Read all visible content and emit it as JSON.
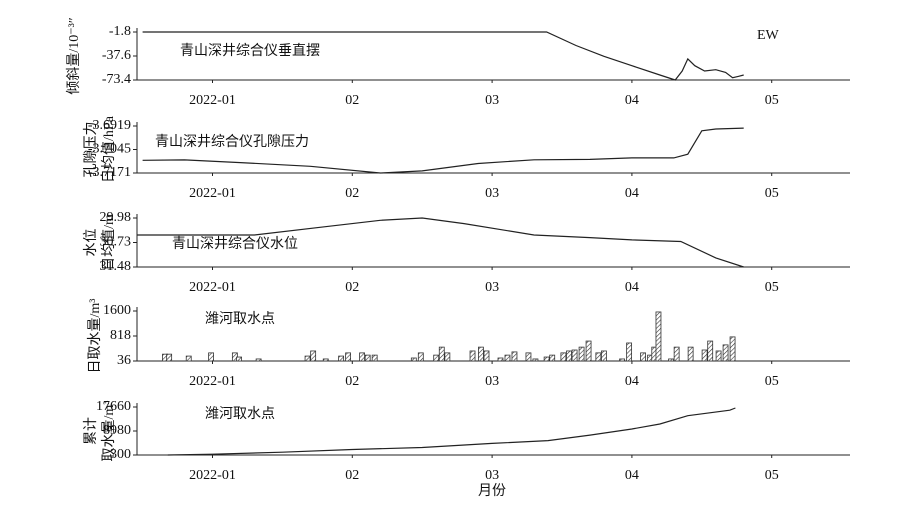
{
  "chart_data": [
    {
      "type": "line",
      "ylabel": [
        "倾斜量/10⁻³″"
      ],
      "annotations": [
        "青山深井综合仪垂直摆",
        "EW"
      ],
      "x": [
        0.5,
        1.0,
        2.0,
        3.0,
        3.39,
        3.6,
        3.8,
        4.0,
        4.2,
        4.31,
        4.36,
        4.4,
        4.45,
        4.52,
        4.6,
        4.67,
        4.72,
        4.76,
        4.8
      ],
      "values": [
        -1.8,
        -1.8,
        -1.8,
        -1.8,
        -1.8,
        -22,
        -38,
        -52,
        -66,
        -73.4,
        -60,
        -42,
        -52,
        -60,
        -58,
        -62,
        -70,
        -68,
        -66
      ],
      "color": "#222",
      "xlim": [
        0.46,
        5.56
      ],
      "xticks": [
        {
          "value": 1,
          "label": "2022-01"
        },
        {
          "value": 2,
          "label": "02"
        },
        {
          "value": 3,
          "label": "03"
        },
        {
          "value": 4,
          "label": "04"
        },
        {
          "value": 5,
          "label": "05"
        }
      ],
      "ylim": [
        -73.4,
        -1.8
      ],
      "yticks": [
        -1.8,
        -37.6,
        -73.4
      ]
    },
    {
      "type": "line",
      "ylabel": [
        "孔隙压力",
        "日均值/hPa"
      ],
      "annotations": [
        "青山深井综合仪孔隙压力"
      ],
      "x": [
        0.5,
        0.8,
        1.2,
        1.7,
        2.2,
        2.5,
        2.9,
        3.3,
        3.7,
        4.0,
        4.3,
        4.4,
        4.5,
        4.6,
        4.8
      ],
      "values": [
        -3.7103,
        -3.7101,
        -3.7115,
        -3.7135,
        -3.7171,
        -3.716,
        -3.712,
        -3.71,
        -3.7098,
        -3.709,
        -3.709,
        -3.707,
        -3.6945,
        -3.6935,
        -3.693
      ],
      "color": "#222",
      "xlim": [
        0.46,
        5.56
      ],
      "xticks": [
        {
          "value": 1,
          "label": "2022-01"
        },
        {
          "value": 2,
          "label": "02"
        },
        {
          "value": 3,
          "label": "03"
        },
        {
          "value": 4,
          "label": "04"
        },
        {
          "value": 5,
          "label": "05"
        }
      ],
      "ylim": [
        -3.7171,
        -3.6919
      ],
      "yticks": [
        -3.6919,
        -3.7045,
        -3.7171
      ]
    },
    {
      "type": "line",
      "ylabel": [
        "水位",
        "日均值/m"
      ],
      "annotations": [
        "青山深井综合仪水位"
      ],
      "x": [
        0.46,
        1.3,
        1.8,
        2.2,
        2.5,
        2.8,
        3.3,
        3.7,
        4.0,
        4.35,
        4.6,
        4.8
      ],
      "values": [
        30.5,
        30.5,
        30.25,
        30.05,
        29.98,
        30.15,
        30.5,
        30.58,
        30.65,
        30.7,
        31.2,
        31.48
      ],
      "color": "#222",
      "xlim": [
        0.46,
        5.56
      ],
      "xticks": [
        {
          "value": 1,
          "label": "2022-01"
        },
        {
          "value": 2,
          "label": "02"
        },
        {
          "value": 3,
          "label": "03"
        },
        {
          "value": 4,
          "label": "04"
        },
        {
          "value": 5,
          "label": "05"
        }
      ],
      "ylim": [
        31.48,
        29.98
      ],
      "yticks": [
        29.98,
        30.73,
        31.48
      ]
    },
    {
      "type": "bar",
      "ylabel": [
        "日取水量/m³"
      ],
      "annotations": [
        "潍河取水点"
      ],
      "x": [
        0.66,
        0.69,
        0.83,
        0.99,
        1.16,
        1.19,
        1.33,
        1.68,
        1.72,
        1.81,
        1.92,
        1.97,
        2.07,
        2.11,
        2.16,
        2.44,
        2.49,
        2.6,
        2.64,
        2.68,
        2.86,
        2.92,
        2.96,
        3.06,
        3.11,
        3.16,
        3.26,
        3.31,
        3.39,
        3.43,
        3.51,
        3.55,
        3.59,
        3.64,
        3.69,
        3.76,
        3.8,
        3.93,
        3.98,
        4.08,
        4.13,
        4.16,
        4.19,
        4.28,
        4.32,
        4.42,
        4.52,
        4.56,
        4.62,
        4.67,
        4.72
      ],
      "values": [
        250,
        250,
        190,
        290,
        290,
        160,
        100,
        190,
        350,
        100,
        190,
        290,
        290,
        220,
        220,
        130,
        290,
        220,
        470,
        290,
        350,
        470,
        350,
        130,
        220,
        320,
        290,
        100,
        160,
        220,
        290,
        350,
        380,
        470,
        660,
        290,
        350,
        100,
        600,
        290,
        220,
        470,
        1570,
        100,
        470,
        470,
        380,
        660,
        350,
        540,
        790
      ],
      "color": "#333",
      "xlim": [
        0.46,
        5.56
      ],
      "xticks": [
        {
          "value": 1,
          "label": "2022-01"
        },
        {
          "value": 2,
          "label": "02"
        },
        {
          "value": 3,
          "label": "03"
        },
        {
          "value": 4,
          "label": "04"
        },
        {
          "value": 5,
          "label": "05"
        }
      ],
      "ylim": [
        36,
        1600
      ],
      "yticks": [
        36,
        818,
        1600
      ]
    },
    {
      "type": "line",
      "ylabel": [
        "累计",
        "取水量/m³"
      ],
      "annotations": [
        "潍河取水点"
      ],
      "xlabel": "月份",
      "x": [
        0.68,
        1.0,
        1.5,
        2.0,
        2.5,
        3.0,
        3.4,
        3.7,
        4.0,
        4.2,
        4.4,
        4.7,
        4.74
      ],
      "values": [
        300,
        600,
        1300,
        2300,
        3000,
        4500,
        5500,
        7500,
        9700,
        11500,
        14500,
        16500,
        17300
      ],
      "color": "#222",
      "xlim": [
        0.46,
        5.56
      ],
      "xticks": [
        {
          "value": 1,
          "label": "2022-01"
        },
        {
          "value": 2,
          "label": "02"
        },
        {
          "value": 3,
          "label": "03"
        },
        {
          "value": 4,
          "label": "04"
        },
        {
          "value": 5,
          "label": "05"
        }
      ],
      "ylim": [
        300,
        17660
      ],
      "yticks": [
        300,
        8980,
        17660
      ]
    }
  ]
}
